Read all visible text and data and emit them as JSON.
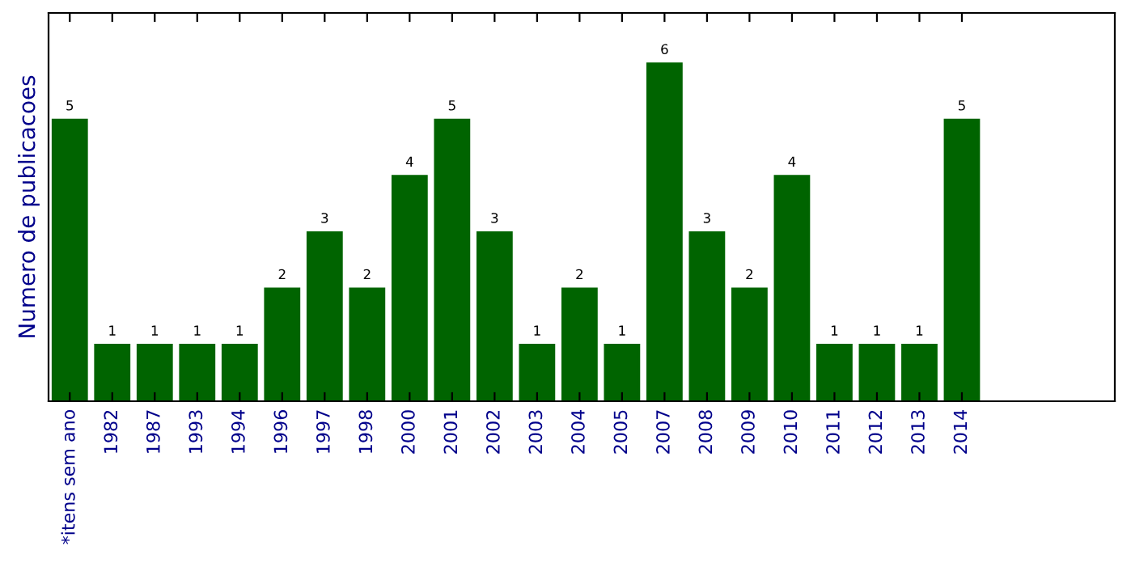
{
  "chart_data": {
    "type": "bar",
    "ylabel": "Numero de publicacoes",
    "categories": [
      "*itens sem ano",
      "1982",
      "1987",
      "1993",
      "1994",
      "1996",
      "1997",
      "1998",
      "2000",
      "2001",
      "2002",
      "2003",
      "2004",
      "2005",
      "2007",
      "2008",
      "2009",
      "2010",
      "2011",
      "2012",
      "2013",
      "2014"
    ],
    "values": [
      5,
      1,
      1,
      1,
      1,
      2,
      3,
      2,
      4,
      5,
      3,
      1,
      2,
      1,
      6,
      3,
      2,
      4,
      1,
      1,
      1,
      5
    ],
    "color": "#006400",
    "ylim": [
      0,
      6.9
    ],
    "data_labels": true,
    "tick_labels": "x",
    "grid": false,
    "legend": false
  }
}
